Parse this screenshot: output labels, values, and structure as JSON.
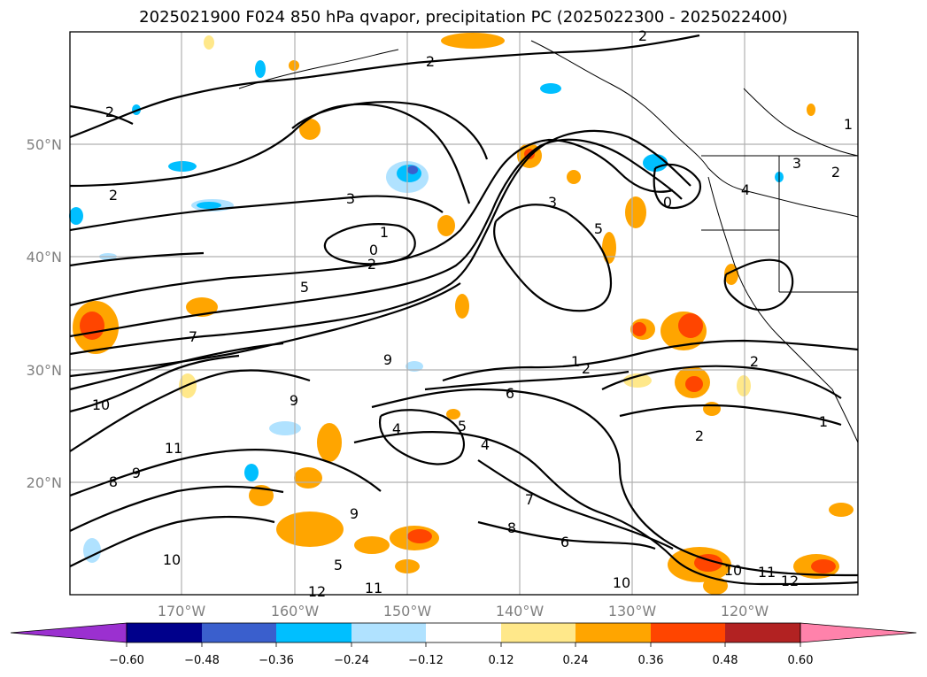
{
  "title": "2025021900 F024 850 hPa qvapor, precipitation PC (2025022300 - 2025022400)",
  "map": {
    "lat_ticks": [
      "50°N",
      "40°N",
      "30°N",
      "20°N"
    ],
    "lon_ticks": [
      "170°W",
      "160°W",
      "150°W",
      "140°W",
      "130°W",
      "120°W"
    ],
    "grid": true
  },
  "colorbar": {
    "ticks": [
      "−0.60",
      "−0.48",
      "−0.36",
      "−0.24",
      "−0.12",
      "0.12",
      "0.24",
      "0.36",
      "0.48",
      "0.60"
    ],
    "colors": [
      "#9b30d0",
      "#00008b",
      "#3a5fcd",
      "#00bfff",
      "#b0e2ff",
      "#ffffff",
      "#ffe88a",
      "#ffa500",
      "#ff4500",
      "#b22222",
      "#ff82ab"
    ]
  },
  "contour_labels": [
    "2",
    "2",
    "2",
    "2",
    "3",
    "1",
    "0",
    "2",
    "5",
    "3",
    "5",
    "0",
    "4",
    "1",
    "2",
    "9",
    "10",
    "11",
    "9",
    "8",
    "9",
    "4",
    "5",
    "4",
    "6",
    "7",
    "1",
    "2",
    "2",
    "10",
    "11",
    "12",
    "10",
    "6",
    "9",
    "5",
    "12",
    "11",
    "10",
    "8",
    "7",
    "3",
    "2",
    "1"
  ]
}
